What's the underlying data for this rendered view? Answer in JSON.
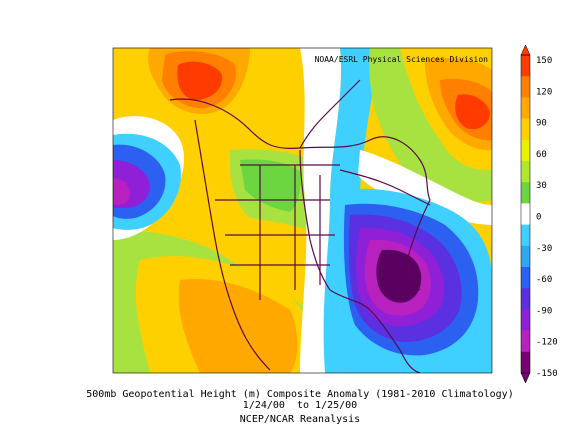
{
  "header": {
    "credit": "NOAA/ESRL Physical Sciences Division"
  },
  "caption": {
    "line1": "500mb Geopotential Height (m) Composite Anomaly (1981-2010 Climatology)",
    "line2": "1/24/00  to 1/25/00",
    "line3": "NCEP/NCAR Reanalysis"
  },
  "colorbar": {
    "ticks": [
      "150",
      "120",
      "90",
      "60",
      "30",
      "0",
      "-30",
      "-60",
      "-90",
      "-120",
      "-150"
    ],
    "colors": [
      "#ff3b00",
      "#ff8000",
      "#ffa800",
      "#ffd000",
      "#e8f000",
      "#b0e830",
      "#6cd640",
      "#ffffff",
      "#40d0ff",
      "#30a8f0",
      "#2c60f0",
      "#5a30e0",
      "#9020d8",
      "#b820c0",
      "#780070"
    ]
  },
  "palette": {
    "background": "#ffffff",
    "coast": "#5a0a4a",
    "neg_core": "#5a0060"
  }
}
